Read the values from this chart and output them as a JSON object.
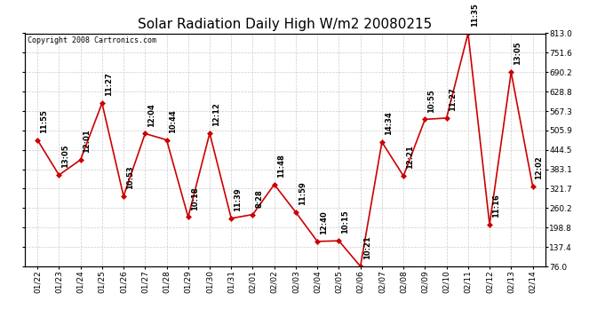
{
  "title": "Solar Radiation Daily High W/m2 20080215",
  "copyright": "Copyright 2008 Cartronics.com",
  "line_color": "#cc0000",
  "marker_color": "#cc0000",
  "bg_color": "#ffffff",
  "grid_color": "#cccccc",
  "dates": [
    "01/22",
    "01/23",
    "01/24",
    "01/25",
    "01/26",
    "01/27",
    "01/28",
    "01/29",
    "01/30",
    "01/31",
    "02/01",
    "02/02",
    "02/03",
    "02/04",
    "02/05",
    "02/06",
    "02/07",
    "02/08",
    "02/09",
    "02/10",
    "02/11",
    "02/12",
    "02/13",
    "02/14"
  ],
  "values": [
    476,
    365,
    413,
    592,
    298,
    496,
    476,
    232,
    497,
    228,
    240,
    335,
    247,
    155,
    157,
    76,
    469,
    362,
    541,
    545,
    813,
    208,
    690,
    330
  ],
  "time_labels": [
    "11:55",
    "13:05",
    "12:01",
    "11:27",
    "10:53",
    "12:04",
    "10:44",
    "10:18",
    "12:12",
    "11:39",
    "8:28",
    "11:48",
    "11:59",
    "12:40",
    "10:15",
    "10:21",
    "14:34",
    "12:21",
    "10:55",
    "11:27",
    "11:35",
    "11:16",
    "13:05",
    "12:02"
  ],
  "ylim_min": 76.0,
  "ylim_max": 813.0,
  "yticks": [
    76.0,
    137.4,
    198.8,
    260.2,
    321.7,
    383.1,
    444.5,
    505.9,
    567.3,
    628.8,
    690.2,
    751.6,
    813.0
  ],
  "title_fontsize": 11,
  "label_fontsize": 6,
  "tick_fontsize": 6.5,
  "copyright_fontsize": 6
}
